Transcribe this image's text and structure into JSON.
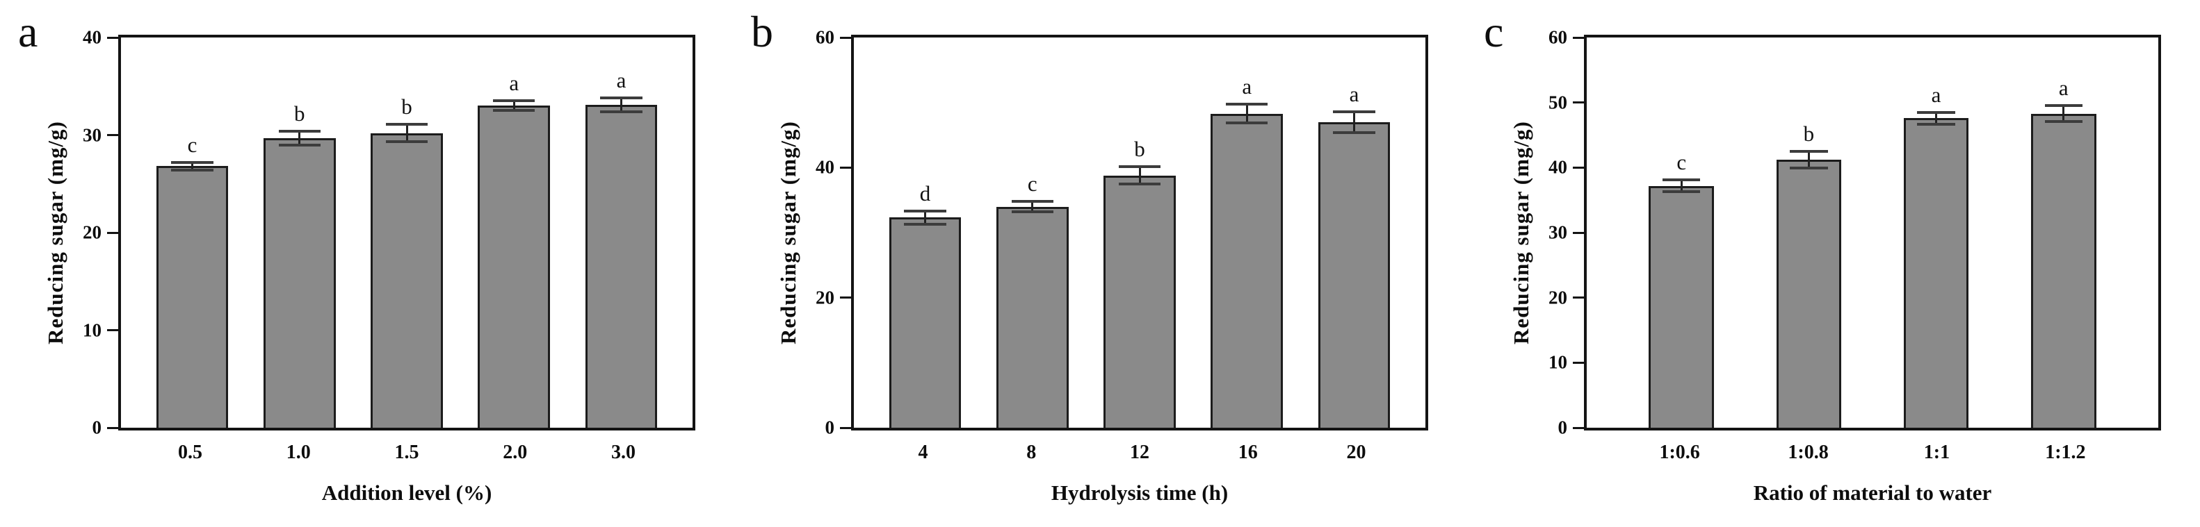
{
  "figure_type": "three-panel bar chart figure",
  "chart_data": [
    {
      "type": "bar",
      "panel_label": "a",
      "title": "",
      "xlabel": "Addition level (%)",
      "ylabel": "Reducing sugar (mg/g)",
      "categories": [
        "0.5",
        "1.0",
        "1.5",
        "2.0",
        "3.0"
      ],
      "values": [
        26.8,
        29.7,
        30.2,
        33.0,
        33.1
      ],
      "errors": [
        0.4,
        0.7,
        0.9,
        0.5,
        0.7
      ],
      "sig_letters": [
        "c",
        "b",
        "b",
        "a",
        "a"
      ],
      "ylim": [
        0,
        40
      ],
      "yticks": [
        0,
        10,
        20,
        30,
        40
      ],
      "legend": "none",
      "grid": "off",
      "bar_color": "#8a8a8a",
      "bar_edge_color": "#1c1c1c"
    },
    {
      "type": "bar",
      "panel_label": "b",
      "title": "",
      "xlabel": "Hydrolysis time (h)",
      "ylabel": "Reducing sugar (mg/g)",
      "categories": [
        "4",
        "8",
        "12",
        "16",
        "20"
      ],
      "values": [
        32.3,
        34.0,
        38.8,
        48.3,
        47.0
      ],
      "errors": [
        1.0,
        0.8,
        1.3,
        1.4,
        1.6
      ],
      "sig_letters": [
        "d",
        "c",
        "b",
        "a",
        "a"
      ],
      "ylim": [
        0,
        60
      ],
      "yticks": [
        0,
        20,
        40,
        60
      ],
      "legend": "none",
      "grid": "off",
      "bar_color": "#8a8a8a",
      "bar_edge_color": "#1c1c1c"
    },
    {
      "type": "bar",
      "panel_label": "c",
      "title": "",
      "xlabel": "Ratio of material to water",
      "ylabel": "Reducing sugar (mg/g)",
      "categories": [
        "1:0.6",
        "1:0.8",
        "1:1",
        "1:1.2"
      ],
      "values": [
        37.2,
        41.2,
        47.6,
        48.3
      ],
      "errors": [
        0.9,
        1.3,
        0.9,
        1.2
      ],
      "sig_letters": [
        "c",
        "b",
        "a",
        "a"
      ],
      "ylim": [
        0,
        60
      ],
      "yticks": [
        0,
        10,
        20,
        30,
        40,
        50,
        60
      ],
      "legend": "none",
      "grid": "off",
      "bar_color": "#8a8a8a",
      "bar_edge_color": "#1c1c1c"
    }
  ]
}
